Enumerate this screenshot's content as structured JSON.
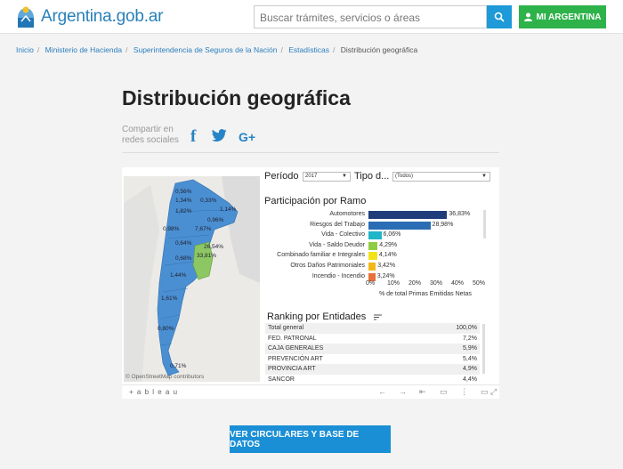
{
  "header": {
    "brand": "Argentina.gob.ar",
    "search_placeholder": "Buscar trámites, servicios o áreas",
    "account_label": "MI ARGENTINA"
  },
  "breadcrumb": [
    "Inicio",
    "Ministerio de Hacienda",
    "Superintendencia de Seguros de la Nación",
    "Estadísticas",
    "Distribución geográfica"
  ],
  "page": {
    "title": "Distribución geográfica",
    "share_label": "Compartir en redes sociales",
    "cta": "VER CIRCULARES Y BASE DE DATOS"
  },
  "dashboard": {
    "periodo_label": "Período",
    "periodo_value": "2017",
    "tipo_label": "Tipo d...",
    "tipo_value": "(Todos)",
    "map_attribution": "© OpenStreetMap contributors",
    "map_percentages": [
      "0,56%",
      "1,34%",
      "0,33%",
      "1,82%",
      "1,14%",
      "0,96%",
      "0,98%",
      "7,67%",
      "0,64%",
      "26,54%",
      "0,68%",
      "33,81%",
      "1,44%",
      "1,61%",
      "0,80%",
      "0,71%"
    ],
    "toolbar_brand": "+ a b l e a u",
    "ramo_title": "Participación por Ramo",
    "axis_title": "% de total Primas Emitidas Netas",
    "ranking_title": "Ranking por Entidades",
    "ranking": [
      {
        "name": "Total general",
        "value": "100,0%"
      },
      {
        "name": "FED. PATRONAL",
        "value": "7,2%"
      },
      {
        "name": "CAJA GENERALES",
        "value": "5,9%"
      },
      {
        "name": "PREVENCIÓN ART",
        "value": "5,4%"
      },
      {
        "name": "PROVINCIA ART",
        "value": "4,9%"
      },
      {
        "name": "SANCOR",
        "value": "4,4%"
      }
    ]
  },
  "chart_data": {
    "type": "bar",
    "title": "Participación por Ramo",
    "xlabel": "% de total Primas Emitidas Netas",
    "categories": [
      "Automotores",
      "Riesgos del Trabajo",
      "Vida - Colectivo",
      "Vida - Saldo Deudor",
      "Combinado familiar e Integrales",
      "Otros Daños Patrimoniales",
      "Incendio - Incendio"
    ],
    "values": [
      36.83,
      28.98,
      6.06,
      4.29,
      4.14,
      3.42,
      3.24
    ],
    "value_labels": [
      "36,83%",
      "28,98%",
      "6,06%",
      "4,29%",
      "4,14%",
      "3,42%",
      "3,24%"
    ],
    "colors": [
      "#1f3d7a",
      "#2a6db5",
      "#20b5c9",
      "#8fcc44",
      "#f2e21a",
      "#f2b81a",
      "#e8733a"
    ],
    "xticks": [
      "0%",
      "10%",
      "20%",
      "30%",
      "40%",
      "50%"
    ],
    "xlim": [
      0,
      50
    ]
  }
}
